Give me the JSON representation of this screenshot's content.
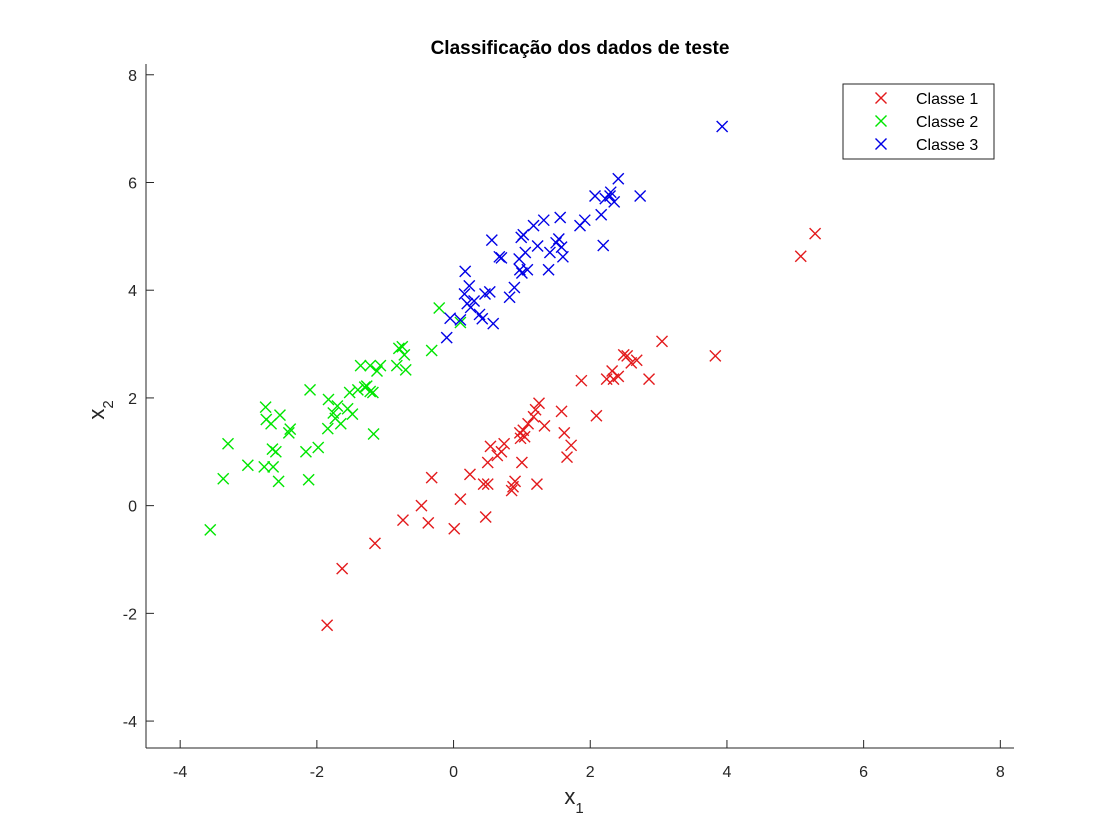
{
  "chart_data": {
    "type": "scatter",
    "title": "Classificação dos dados de teste",
    "xlabel": {
      "base": "x",
      "sub": "1"
    },
    "ylabel": {
      "base": "x",
      "sub": "2"
    },
    "xlim": [
      -4.5,
      8.2
    ],
    "ylim": [
      -4.5,
      8.2
    ],
    "xticks": [
      -4,
      -2,
      0,
      2,
      4,
      6,
      8
    ],
    "yticks": [
      -4,
      -2,
      0,
      2,
      4,
      6,
      8
    ],
    "xtick_labels": [
      "-4",
      "-2",
      "0",
      "2",
      "4",
      "6",
      "8"
    ],
    "ytick_labels": [
      "-4",
      "-2",
      "0",
      "2",
      "4",
      "6",
      "8"
    ],
    "grid": false,
    "marker": "x",
    "legend_position": "top-right",
    "series": [
      {
        "name": "Classe 1",
        "color": "#e31a1c",
        "points": [
          [
            -1.85,
            -2.22
          ],
          [
            -1.63,
            -1.17
          ],
          [
            -1.15,
            -0.7
          ],
          [
            -0.74,
            -0.27
          ],
          [
            -0.47,
            0.0
          ],
          [
            -0.37,
            -0.32
          ],
          [
            -0.32,
            0.52
          ],
          [
            0.01,
            -0.43
          ],
          [
            0.1,
            0.12
          ],
          [
            0.24,
            0.58
          ],
          [
            0.44,
            0.4
          ],
          [
            0.47,
            -0.21
          ],
          [
            0.5,
            0.4
          ],
          [
            0.5,
            0.8
          ],
          [
            0.54,
            1.1
          ],
          [
            0.64,
            0.93
          ],
          [
            0.7,
            1.0
          ],
          [
            0.74,
            1.15
          ],
          [
            0.85,
            0.28
          ],
          [
            0.87,
            0.35
          ],
          [
            0.9,
            0.45
          ],
          [
            0.97,
            1.35
          ],
          [
            0.98,
            1.25
          ],
          [
            1.0,
            0.8
          ],
          [
            1.02,
            1.4
          ],
          [
            1.04,
            1.28
          ],
          [
            1.09,
            1.52
          ],
          [
            1.17,
            1.65
          ],
          [
            1.2,
            1.78
          ],
          [
            1.22,
            0.4
          ],
          [
            1.25,
            1.9
          ],
          [
            1.33,
            1.48
          ],
          [
            1.58,
            1.75
          ],
          [
            1.62,
            1.35
          ],
          [
            1.66,
            0.9
          ],
          [
            1.72,
            1.12
          ],
          [
            1.87,
            2.32
          ],
          [
            2.09,
            1.67
          ],
          [
            2.24,
            2.35
          ],
          [
            2.32,
            2.5
          ],
          [
            2.34,
            2.35
          ],
          [
            2.41,
            2.4
          ],
          [
            2.49,
            2.8
          ],
          [
            2.54,
            2.78
          ],
          [
            2.6,
            2.65
          ],
          [
            2.68,
            2.7
          ],
          [
            2.86,
            2.35
          ],
          [
            3.05,
            3.05
          ],
          [
            3.83,
            2.78
          ],
          [
            5.08,
            4.63
          ],
          [
            5.29,
            5.05
          ]
        ]
      },
      {
        "name": "Classe 2",
        "color": "#00e600",
        "points": [
          [
            -3.56,
            -0.45
          ],
          [
            -3.37,
            0.5
          ],
          [
            -3.3,
            1.15
          ],
          [
            -3.01,
            0.75
          ],
          [
            -2.77,
            0.72
          ],
          [
            -2.75,
            1.83
          ],
          [
            -2.74,
            1.6
          ],
          [
            -2.67,
            1.52
          ],
          [
            -2.65,
            1.05
          ],
          [
            -2.64,
            0.72
          ],
          [
            -2.6,
            1.0
          ],
          [
            -2.56,
            0.45
          ],
          [
            -2.54,
            1.68
          ],
          [
            -2.41,
            1.35
          ],
          [
            -2.39,
            1.42
          ],
          [
            -2.16,
            1.0
          ],
          [
            -2.12,
            0.48
          ],
          [
            -2.1,
            2.15
          ],
          [
            -1.98,
            1.08
          ],
          [
            -1.84,
            1.43
          ],
          [
            -1.83,
            1.97
          ],
          [
            -1.76,
            1.72
          ],
          [
            -1.73,
            1.62
          ],
          [
            -1.7,
            1.85
          ],
          [
            -1.65,
            1.52
          ],
          [
            -1.55,
            1.8
          ],
          [
            -1.52,
            2.1
          ],
          [
            -1.48,
            1.7
          ],
          [
            -1.4,
            2.15
          ],
          [
            -1.36,
            2.6
          ],
          [
            -1.3,
            2.2
          ],
          [
            -1.27,
            2.22
          ],
          [
            -1.22,
            2.6
          ],
          [
            -1.22,
            2.12
          ],
          [
            -1.18,
            2.1
          ],
          [
            -1.17,
            1.33
          ],
          [
            -1.12,
            2.5
          ],
          [
            -1.07,
            2.6
          ],
          [
            -0.83,
            2.6
          ],
          [
            -0.8,
            2.92
          ],
          [
            -0.75,
            2.95
          ],
          [
            -0.72,
            2.8
          ],
          [
            -0.7,
            2.52
          ],
          [
            -0.32,
            2.88
          ],
          [
            -0.21,
            3.67
          ],
          [
            0.1,
            3.4
          ]
        ]
      },
      {
        "name": "Classe 3",
        "color": "#0000e6",
        "points": [
          [
            -0.1,
            3.12
          ],
          [
            -0.05,
            3.48
          ],
          [
            0.1,
            3.45
          ],
          [
            0.16,
            3.93
          ],
          [
            0.17,
            4.35
          ],
          [
            0.2,
            3.75
          ],
          [
            0.23,
            4.08
          ],
          [
            0.25,
            3.68
          ],
          [
            0.3,
            3.8
          ],
          [
            0.38,
            3.55
          ],
          [
            0.42,
            3.47
          ],
          [
            0.46,
            3.93
          ],
          [
            0.53,
            3.97
          ],
          [
            0.56,
            4.93
          ],
          [
            0.58,
            3.38
          ],
          [
            0.67,
            4.62
          ],
          [
            0.7,
            4.6
          ],
          [
            0.82,
            3.87
          ],
          [
            0.89,
            4.05
          ],
          [
            0.96,
            4.58
          ],
          [
            0.97,
            4.38
          ],
          [
            0.99,
            4.98
          ],
          [
            1.0,
            4.32
          ],
          [
            1.02,
            5.03
          ],
          [
            1.05,
            4.7
          ],
          [
            1.08,
            4.38
          ],
          [
            1.17,
            5.2
          ],
          [
            1.23,
            4.82
          ],
          [
            1.32,
            5.3
          ],
          [
            1.39,
            4.38
          ],
          [
            1.41,
            4.7
          ],
          [
            1.5,
            4.88
          ],
          [
            1.54,
            4.95
          ],
          [
            1.56,
            5.35
          ],
          [
            1.58,
            4.8
          ],
          [
            1.6,
            4.62
          ],
          [
            1.85,
            5.2
          ],
          [
            1.92,
            5.3
          ],
          [
            2.07,
            5.75
          ],
          [
            2.16,
            5.4
          ],
          [
            2.19,
            4.83
          ],
          [
            2.22,
            5.7
          ],
          [
            2.29,
            5.75
          ],
          [
            2.3,
            5.82
          ],
          [
            2.35,
            5.64
          ],
          [
            2.41,
            6.07
          ],
          [
            2.73,
            5.75
          ],
          [
            3.93,
            7.04
          ]
        ]
      }
    ]
  }
}
